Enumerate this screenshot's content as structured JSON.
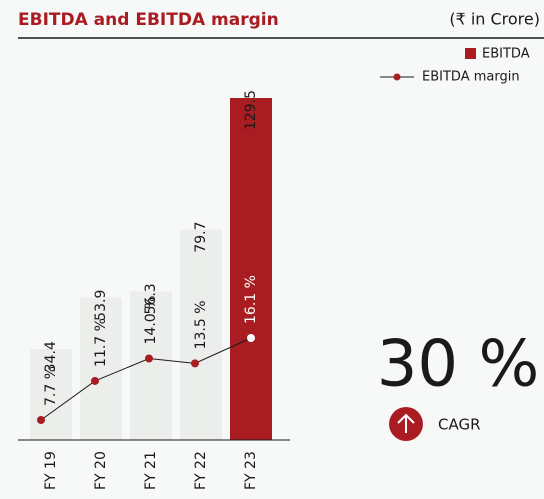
{
  "chart_data": {
    "type": "bar-line",
    "title": "EBITDA and EBITDA margin",
    "unit_label": "(₹ in Crore)",
    "categories": [
      "FY 19",
      "FY 20",
      "FY 21",
      "FY 22",
      "FY 23"
    ],
    "series": [
      {
        "name": "EBITDA",
        "color": "#a91d22",
        "colors": [
          "#eceeeb",
          "#eceeeb",
          "#eceeeb",
          "#eceeeb",
          "#a91d22"
        ],
        "values": [
          34.4,
          53.9,
          56.3,
          79.7,
          129.5
        ]
      },
      {
        "name": "EBITDA margin",
        "color": "#a91d22",
        "axis": "y2",
        "values": [
          7.7,
          11.7,
          14.0,
          13.5,
          16.1
        ],
        "value_labels": [
          "7.7 %",
          "11.7 %",
          "14.0 %",
          "13.5 %",
          "16.1 %"
        ]
      }
    ],
    "cagr_value": "30 %",
    "cagr_label": "CAGR"
  }
}
